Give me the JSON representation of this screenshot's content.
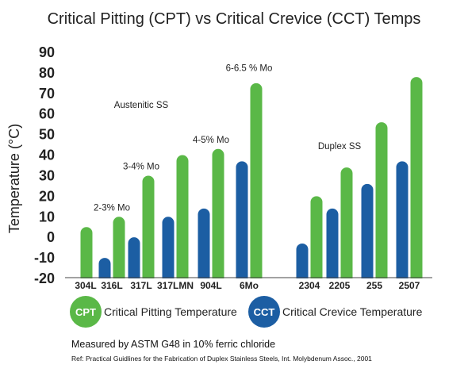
{
  "chart_data": {
    "type": "bar",
    "title": "Critical Pitting (CPT) vs Critical Crevice (CCT) Temps",
    "ylabel": "Temperature (°C)",
    "ylim": [
      -20,
      90
    ],
    "yticks": [
      90,
      80,
      70,
      60,
      50,
      40,
      30,
      20,
      10,
      0,
      -10,
      -20
    ],
    "grid": false,
    "categories": [
      "304L",
      "316L",
      "317L",
      "317LMN",
      "904L",
      "6Mo",
      "2304",
      "2205",
      "255",
      "2507"
    ],
    "series": [
      {
        "name": "CPT",
        "legend_label": "Critical Pitting Temperature",
        "color": "#5ab847",
        "values": [
          5,
          10,
          30,
          40,
          43,
          75,
          20,
          34,
          56,
          78
        ]
      },
      {
        "name": "CCT",
        "legend_label": "Critical Crevice Temperature",
        "color": "#1c5ea3",
        "values": [
          null,
          -10,
          0,
          10,
          14,
          37,
          -3,
          14,
          26,
          37
        ]
      }
    ],
    "annotations": [
      {
        "text": "2-3% Mo",
        "category": "316L",
        "y": 13
      },
      {
        "text": "3-4% Mo",
        "category": "317L",
        "y": 33
      },
      {
        "text": "4-5% Mo",
        "category": "904L",
        "y": 46
      },
      {
        "text": "6-6.5 % Mo",
        "category": "6Mo",
        "y": 81
      },
      {
        "text": "Austenitic SS",
        "category": "317L",
        "y": 63
      },
      {
        "text": "Duplex SS",
        "category": "2205",
        "y": 43
      }
    ]
  },
  "footnote": "Measured by ASTM G48 in 10% ferric chloride",
  "reference": "Ref: Practical Guidlines for the Fabrication of Duplex Stainless Steels, Int. Molybdenum Assoc., 2001"
}
